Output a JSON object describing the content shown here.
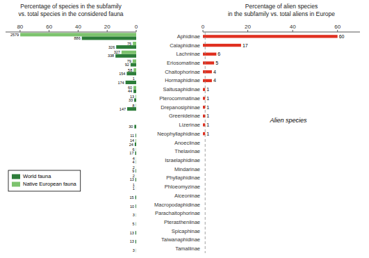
{
  "chart_data": [
    {
      "type": "bar",
      "orientation": "horizontal",
      "title": "Percentage of species in the subfamily\nvs. total species in the considered fauna",
      "xlim": [
        90,
        0
      ],
      "xticks": [
        80,
        60,
        40,
        20,
        0
      ],
      "tick_labels": "x",
      "grid": false,
      "legend": "lower left",
      "series": [
        {
          "name": "World fauna",
          "color": "#2d7d3a",
          "values": [
            37.463,
            13.7844,
            14.2918,
            3.8901,
            6.5116,
            7.3573,
            1.8605,
            1.3953,
            6.2156,
            0,
            1.2685,
            0.4651,
            1.0148,
            0.7188,
            0.1691,
            0.3805,
            0.5497,
            0.0423,
            0.6342,
            0.4228,
            0.1268,
            0.2114,
            0.5497,
            0.5497,
            0.1268
          ],
          "counts": [
            886,
            326,
            338,
            92,
            154,
            174,
            44,
            33,
            147,
            0,
            30,
            11,
            24,
            17,
            4,
            9,
            13,
            1,
            15,
            10,
            3,
            5,
            13,
            13,
            3
          ]
        },
        {
          "name": "Native European fauna",
          "color": "#7dc36e",
          "values": [
            79.8699,
            2.3227,
            10.127,
            2.4466,
            1.7962,
            0.031,
            1.8582,
            0.4026,
            0.2478,
            0,
            0,
            0,
            0.4336,
            0.1858,
            0.1239,
            0.0619,
            0.0619,
            0.031,
            0,
            0,
            0,
            0,
            0,
            0,
            0
          ],
          "counts": [
            2579,
            75,
            327,
            79,
            58,
            1,
            60,
            13,
            8,
            0,
            0,
            0,
            14,
            6,
            4,
            2,
            2,
            1,
            0,
            0,
            0,
            0,
            0,
            0,
            0
          ]
        }
      ]
    },
    {
      "type": "bar",
      "orientation": "horizontal",
      "title": "Percentage of alien species\nin the subfamily vs. total aliens in Europe",
      "categories": [
        "Aphidinae",
        "Calaphidinae",
        "Lachninae",
        "Eriosomatinae",
        "Chaitophorinae",
        "Hormaphidinae",
        "Saltusaphidinae",
        "Pterocommatinae",
        "Drepanosiphinae",
        "Greenideinae",
        "Lizerinae",
        "Neophyllaphidinae",
        "Anoeciinae",
        "Thelaxinae",
        "Israelaphidinae",
        "Mindarinae",
        "Phyllaphidinae",
        "Phloeomyzinae",
        "Aiceoninae",
        "Macropodaphidinae",
        "Parachaitophorinae",
        "Pterastheniinae",
        "Spicaphinae",
        "Taiwanaphidinae",
        "Tamaliinae"
      ],
      "values": [
        60,
        17,
        6,
        5,
        4,
        4,
        1,
        1,
        1,
        1,
        1,
        1,
        0,
        0,
        0,
        0,
        0,
        0,
        0,
        0,
        0,
        0,
        0,
        0,
        0
      ],
      "color": "#e03020",
      "xlim": [
        0,
        70
      ],
      "xticks": [
        0,
        20,
        40,
        60
      ],
      "grid": false,
      "data_labels": true,
      "reference_x": 1,
      "annotation": "Alien species"
    }
  ]
}
